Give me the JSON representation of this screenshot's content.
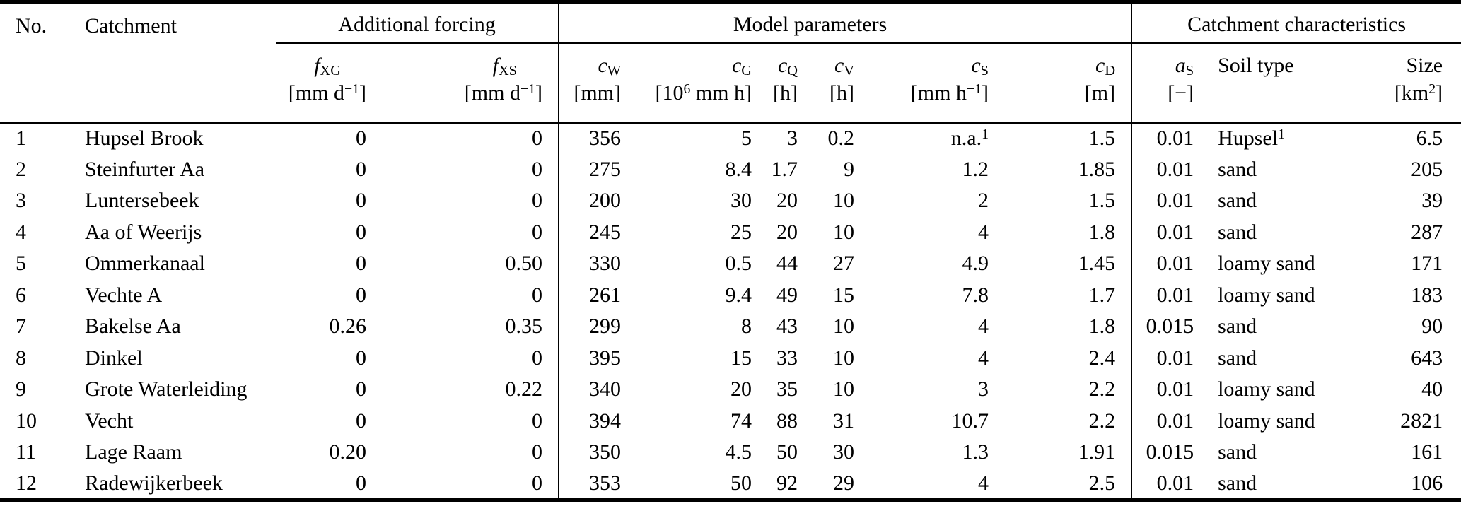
{
  "table": {
    "groups": {
      "forcing": "Additional forcing",
      "params": "Model parameters",
      "chars": "Catchment characteristics"
    },
    "headers": {
      "no": {
        "label": "No."
      },
      "name": {
        "label": "Catchment"
      },
      "fxg": {
        "sym": "f",
        "sub": "XG",
        "u1": "[mm d",
        "usup": "−1",
        "u2": "]"
      },
      "fxs": {
        "sym": "f",
        "sub": "XS",
        "u1": "[mm d",
        "usup": "−1",
        "u2": "]"
      },
      "cw": {
        "sym": "c",
        "sub": "W",
        "u1": "[mm]",
        "usup": "",
        "u2": ""
      },
      "cg": {
        "sym": "c",
        "sub": "G",
        "u1": "[10",
        "usup": "6",
        "u2": " mm h]"
      },
      "cq": {
        "sym": "c",
        "sub": "Q",
        "u1": "[h]",
        "usup": "",
        "u2": ""
      },
      "cv": {
        "sym": "c",
        "sub": "V",
        "u1": "[h]",
        "usup": "",
        "u2": ""
      },
      "cs": {
        "sym": "c",
        "sub": "S",
        "u1": "[mm h",
        "usup": "−1",
        "u2": "]"
      },
      "cd": {
        "sym": "c",
        "sub": "D",
        "u1": "[m]",
        "usup": "",
        "u2": ""
      },
      "as": {
        "sym": "a",
        "sub": "S",
        "u1": "[−]",
        "usup": "",
        "u2": ""
      },
      "soil": {
        "label": "Soil type"
      },
      "size": {
        "label": "Size",
        "u1": "[km",
        "usup": "2",
        "u2": "]"
      }
    },
    "column_keys": [
      "no",
      "name",
      "fxg",
      "fxs",
      "cw",
      "cg",
      "cq",
      "cv",
      "cs",
      "cd",
      "as",
      "soil",
      "size"
    ],
    "rows": [
      {
        "no": "1",
        "name": "Hupsel Brook",
        "fxg": "0",
        "fxs": "0",
        "cw": "356",
        "cg": "5",
        "cq": "3",
        "cv": "0.2",
        "cs": "n.a.¹",
        "cd": "1.5",
        "as": "0.01",
        "soil": "Hupsel¹",
        "size": "6.5"
      },
      {
        "no": "2",
        "name": "Steinfurter Aa",
        "fxg": "0",
        "fxs": "0",
        "cw": "275",
        "cg": "8.4",
        "cq": "1.7",
        "cv": "9",
        "cs": "1.2",
        "cd": "1.85",
        "as": "0.01",
        "soil": "sand",
        "size": "205"
      },
      {
        "no": "3",
        "name": "Luntersebeek",
        "fxg": "0",
        "fxs": "0",
        "cw": "200",
        "cg": "30",
        "cq": "20",
        "cv": "10",
        "cs": "2",
        "cd": "1.5",
        "as": "0.01",
        "soil": "sand",
        "size": "39"
      },
      {
        "no": "4",
        "name": "Aa of Weerijs",
        "fxg": "0",
        "fxs": "0",
        "cw": "245",
        "cg": "25",
        "cq": "20",
        "cv": "10",
        "cs": "4",
        "cd": "1.8",
        "as": "0.01",
        "soil": "sand",
        "size": "287"
      },
      {
        "no": "5",
        "name": "Ommerkanaal",
        "fxg": "0",
        "fxs": "0.50",
        "cw": "330",
        "cg": "0.5",
        "cq": "44",
        "cv": "27",
        "cs": "4.9",
        "cd": "1.45",
        "as": "0.01",
        "soil": "loamy sand",
        "size": "171"
      },
      {
        "no": "6",
        "name": "Vechte A",
        "fxg": "0",
        "fxs": "0",
        "cw": "261",
        "cg": "9.4",
        "cq": "49",
        "cv": "15",
        "cs": "7.8",
        "cd": "1.7",
        "as": "0.01",
        "soil": "loamy sand",
        "size": "183"
      },
      {
        "no": "7",
        "name": "Bakelse Aa",
        "fxg": "0.26",
        "fxs": "0.35",
        "cw": "299",
        "cg": "8",
        "cq": "43",
        "cv": "10",
        "cs": "4",
        "cd": "1.8",
        "as": "0.015",
        "soil": "sand",
        "size": "90"
      },
      {
        "no": "8",
        "name": "Dinkel",
        "fxg": "0",
        "fxs": "0",
        "cw": "395",
        "cg": "15",
        "cq": "33",
        "cv": "10",
        "cs": "4",
        "cd": "2.4",
        "as": "0.01",
        "soil": "sand",
        "size": "643"
      },
      {
        "no": "9",
        "name": "Grote Waterleiding",
        "fxg": "0",
        "fxs": "0.22",
        "cw": "340",
        "cg": "20",
        "cq": "35",
        "cv": "10",
        "cs": "3",
        "cd": "2.2",
        "as": "0.01",
        "soil": "loamy sand",
        "size": "40"
      },
      {
        "no": "10",
        "name": "Vecht",
        "fxg": "0",
        "fxs": "0",
        "cw": "394",
        "cg": "74",
        "cq": "88",
        "cv": "31",
        "cs": "10.7",
        "cd": "2.2",
        "as": "0.01",
        "soil": "loamy sand",
        "size": "2821"
      },
      {
        "no": "11",
        "name": "Lage Raam",
        "fxg": "0.20",
        "fxs": "0",
        "cw": "350",
        "cg": "4.5",
        "cq": "50",
        "cv": "30",
        "cs": "1.3",
        "cd": "1.91",
        "as": "0.015",
        "soil": "sand",
        "size": "161"
      },
      {
        "no": "12",
        "name": "Radewijkerbeek",
        "fxg": "0",
        "fxs": "0",
        "cw": "353",
        "cg": "50",
        "cq": "92",
        "cv": "29",
        "cs": "4",
        "cd": "2.5",
        "as": "0.01",
        "soil": "sand",
        "size": "106"
      }
    ]
  }
}
